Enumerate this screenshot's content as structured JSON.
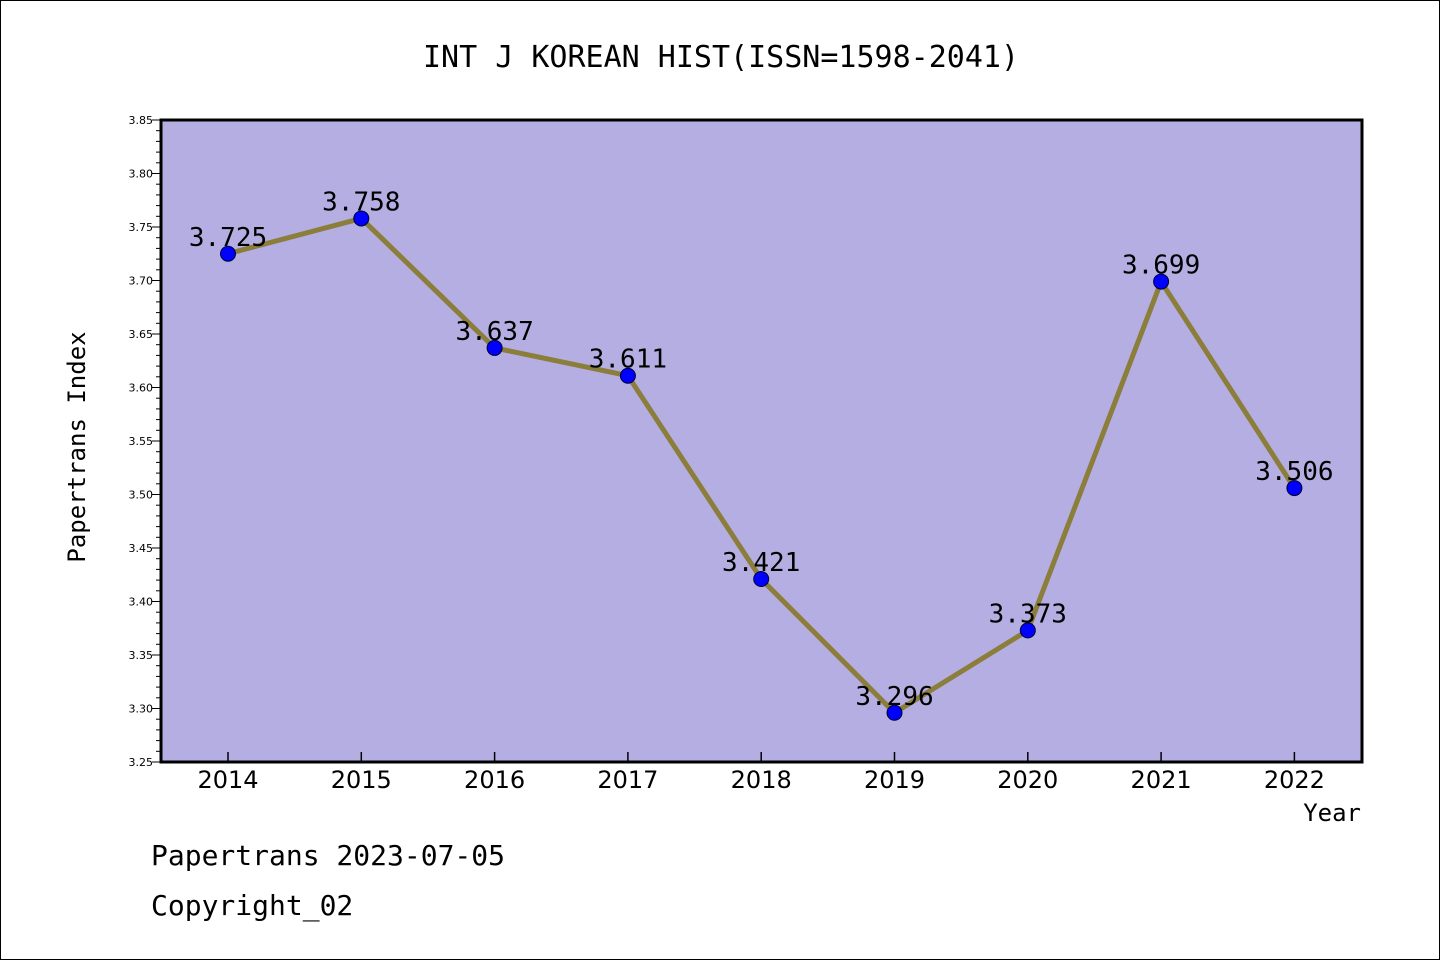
{
  "chart_data": {
    "type": "line",
    "title": "INT J KOREAN HIST(ISSN=1598-2041)",
    "xlabel": "Year",
    "ylabel": "Papertrans Index",
    "categories": [
      "2014",
      "2015",
      "2016",
      "2017",
      "2018",
      "2019",
      "2020",
      "2021",
      "2022"
    ],
    "values": [
      3.725,
      3.758,
      3.637,
      3.611,
      3.421,
      3.296,
      3.373,
      3.699,
      3.506
    ],
    "data_labels": [
      "3.725",
      "3.758",
      "3.637",
      "3.611",
      "3.421",
      "3.296",
      "3.373",
      "3.699",
      "3.506"
    ],
    "ylim": [
      3.25,
      3.85
    ],
    "yticks": [
      "3.25",
      "3.30",
      "3.35",
      "3.40",
      "3.45",
      "3.50",
      "3.55",
      "3.60",
      "3.65",
      "3.70",
      "3.75",
      "3.80",
      "3.85"
    ],
    "grid": false,
    "colors": {
      "plot_background": "#b5aee2",
      "line": "#8b7d3a",
      "marker": "#0000ff"
    }
  },
  "footer": {
    "line1": "Papertrans 2023-07-05",
    "line2": "Copyright_02"
  }
}
